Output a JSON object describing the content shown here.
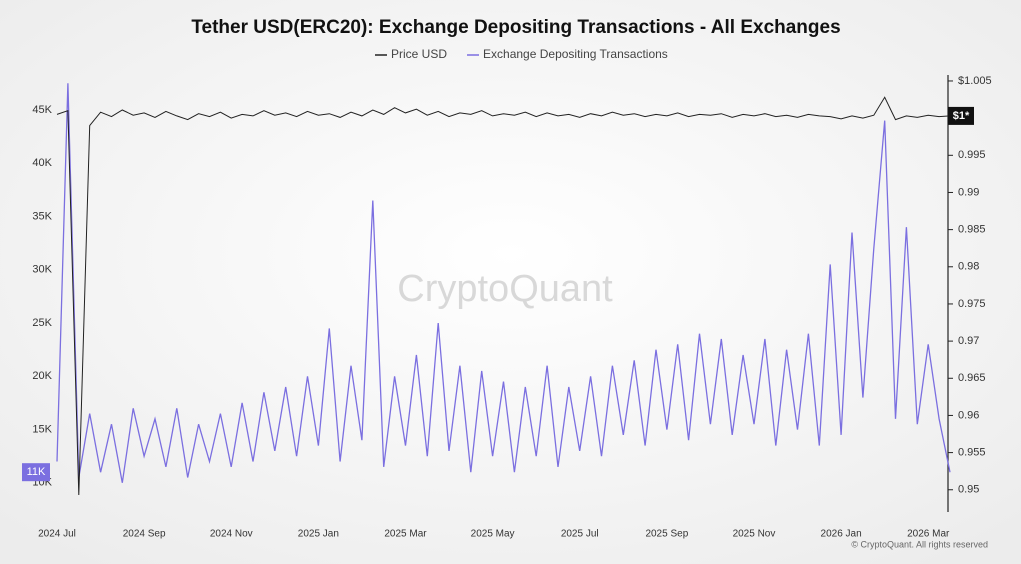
{
  "chart_data": {
    "type": "line",
    "title": "Tether USD(ERC20): Exchange Depositing Transactions - All Exchanges",
    "watermark": "CryptoQuant",
    "copyright": "© CryptoQuant. All rights reserved",
    "categories": [
      "2024 Jul",
      null,
      null,
      null,
      null,
      null,
      null,
      null,
      "2024 Sep",
      null,
      null,
      null,
      null,
      null,
      null,
      null,
      "2024 Nov",
      null,
      null,
      null,
      null,
      null,
      null,
      null,
      "2025 Jan",
      null,
      null,
      null,
      null,
      null,
      null,
      null,
      "2025 Mar",
      null,
      null,
      null,
      null,
      null,
      null,
      null,
      "2025 May",
      null,
      null,
      null,
      null,
      null,
      null,
      null,
      "2025 Jul",
      null,
      null,
      null,
      null,
      null,
      null,
      null,
      "2025 Sep",
      null,
      null,
      null,
      null,
      null,
      null,
      null,
      "2025 Nov",
      null,
      null,
      null,
      null,
      null,
      null,
      null,
      "2026 Jan",
      null,
      null,
      null,
      null,
      null,
      null,
      null,
      "2026 Mar",
      null,
      null
    ],
    "series": [
      {
        "name": "Price USD",
        "color": "#222222",
        "axis": "y2",
        "last_label": "$1*",
        "values": [
          1.0005,
          1.001,
          0.9493,
          0.999,
          1.0008,
          1.0002,
          1.0011,
          1.0004,
          1.0007,
          1.0001,
          1.0009,
          1.0003,
          0.9998,
          1.0006,
          1.0002,
          1.0008,
          1.0,
          1.0005,
          1.0003,
          1.001,
          1.0004,
          1.0007,
          1.0002,
          1.0009,
          1.0004,
          1.0006,
          1.0001,
          1.0008,
          1.0003,
          1.0011,
          1.0005,
          1.0014,
          1.0007,
          1.0012,
          1.0004,
          1.0009,
          1.0002,
          1.0007,
          1.0005,
          1.001,
          1.0003,
          1.0006,
          1.0004,
          1.0008,
          1.0002,
          1.0007,
          1.0003,
          1.0005,
          1.0001,
          1.0006,
          1.0003,
          1.0008,
          1.0004,
          1.0006,
          1.0002,
          1.0005,
          1.0003,
          1.0007,
          1.0002,
          1.0005,
          1.0004,
          1.0006,
          1.0001,
          1.0005,
          1.0003,
          1.0006,
          1.0002,
          1.0004,
          1.0001,
          1.0005,
          1.0003,
          1.0002,
          0.9999,
          1.0003,
          1.0,
          1.0004,
          1.0028,
          0.9998,
          1.0003,
          1.0001,
          1.0004,
          1.0002,
          1.0003
        ]
      },
      {
        "name": "Exchange Depositing Transactions",
        "color": "#7b6fe0",
        "axis": "y",
        "last_label": "11K",
        "values": [
          12000,
          47500,
          10500,
          16500,
          11000,
          15500,
          10000,
          17000,
          12500,
          16000,
          11500,
          17000,
          10500,
          15500,
          12000,
          16500,
          11500,
          17500,
          12000,
          18500,
          13000,
          19000,
          12500,
          20000,
          13500,
          24500,
          12000,
          21000,
          14000,
          36500,
          11500,
          20000,
          13500,
          22000,
          12500,
          25000,
          13000,
          21000,
          11000,
          20500,
          12500,
          19500,
          11000,
          19000,
          12500,
          21000,
          11500,
          19000,
          13000,
          20000,
          12500,
          21000,
          14500,
          21500,
          13500,
          22500,
          15000,
          23000,
          14000,
          24000,
          15500,
          23500,
          14500,
          22000,
          15500,
          23500,
          13500,
          22500,
          15000,
          24000,
          13500,
          30500,
          14500,
          33500,
          18000,
          32000,
          44000,
          16000,
          34000,
          15500,
          23000,
          16000,
          11000
        ]
      }
    ],
    "ylim": [
      6700,
      48000
    ],
    "yticks": [
      {
        "value": 10000,
        "label": "10K"
      },
      {
        "value": 15000,
        "label": "15K"
      },
      {
        "value": 20000,
        "label": "20K"
      },
      {
        "value": 25000,
        "label": "25K"
      },
      {
        "value": 30000,
        "label": "30K"
      },
      {
        "value": 35000,
        "label": "35K"
      },
      {
        "value": 40000,
        "label": "40K"
      },
      {
        "value": 45000,
        "label": "45K"
      }
    ],
    "y2lim": [
      0.9462,
      1.0054
    ],
    "y2ticks": [
      0.95,
      0.955,
      0.96,
      0.965,
      0.97,
      0.975,
      0.98,
      0.985,
      0.99,
      0.995,
      {
        "value": 1.005,
        "label": "$1.005"
      }
    ]
  }
}
